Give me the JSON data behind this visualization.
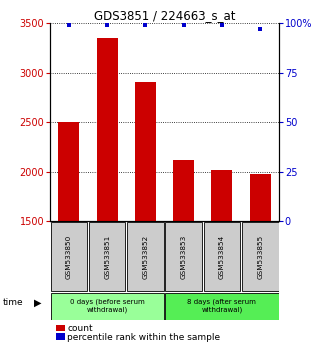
{
  "title": "GDS3851 / 224663_s_at",
  "samples": [
    "GSM533850",
    "GSM533851",
    "GSM533852",
    "GSM533853",
    "GSM533854",
    "GSM533855"
  ],
  "counts": [
    2500,
    3350,
    2900,
    2120,
    2020,
    1980
  ],
  "percentile_ranks": [
    99,
    99,
    99,
    99,
    99,
    97
  ],
  "ylim_left": [
    1500,
    3500
  ],
  "ylim_right": [
    0,
    100
  ],
  "yticks_left": [
    1500,
    2000,
    2500,
    3000,
    3500
  ],
  "yticks_right": [
    0,
    25,
    50,
    75,
    100
  ],
  "bar_color": "#cc0000",
  "percentile_color": "#0000cc",
  "bar_bottom": 1500,
  "groups": [
    {
      "label": "0 days (before serum\nwithdrawal)",
      "indices": [
        0,
        1,
        2
      ],
      "color": "#99ff99"
    },
    {
      "label": "8 days (after serum\nwithdrawal)",
      "indices": [
        3,
        4,
        5
      ],
      "color": "#55ee55"
    }
  ],
  "tick_label_color_left": "#cc0000",
  "tick_label_color_right": "#0000cc",
  "sample_box_color": "#cccccc",
  "legend_count_color": "#cc0000",
  "legend_percentile_color": "#0000cc"
}
